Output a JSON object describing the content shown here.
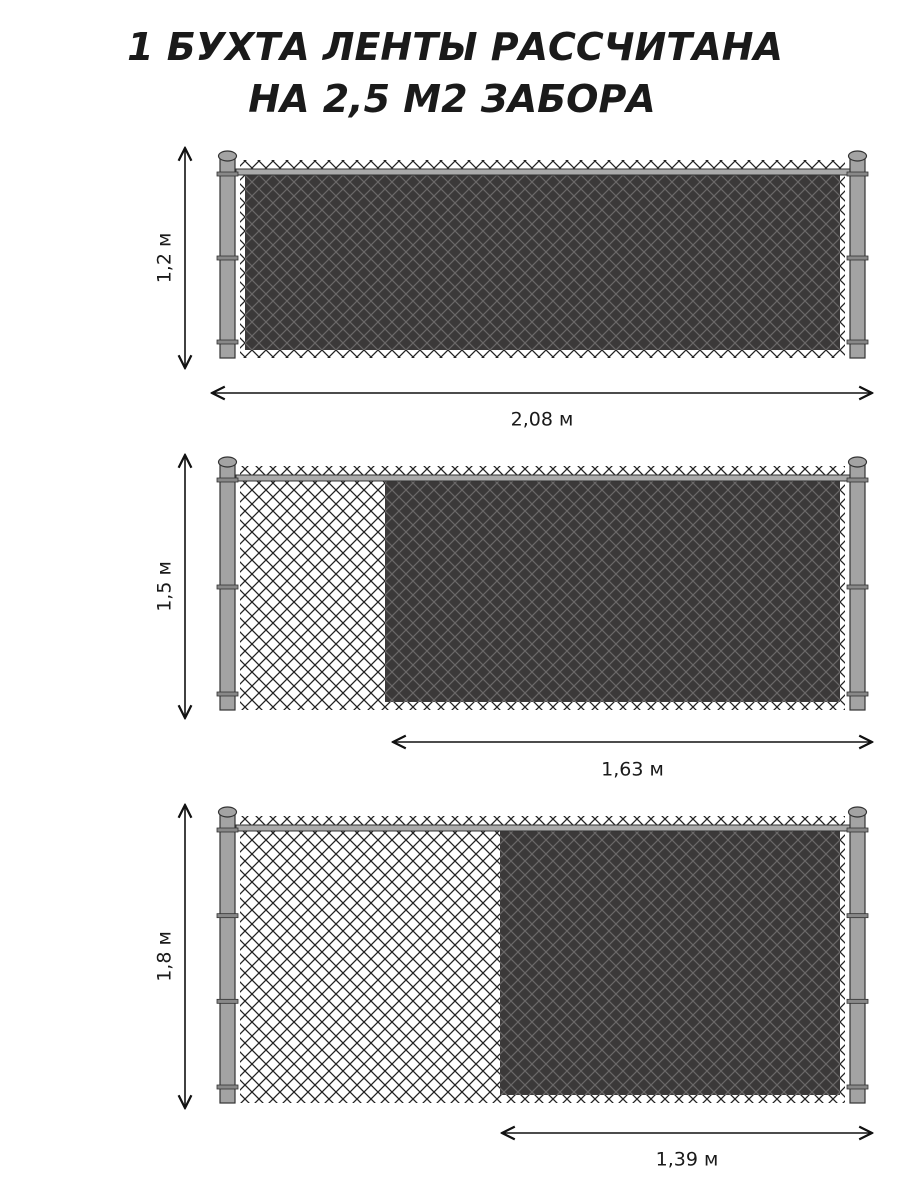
{
  "title": {
    "line1": "1 БУХТА ЛЕНТЫ РАССЧИТАНА",
    "line2": "НА 2,5 М2 ЗАБОРА"
  },
  "panels": [
    {
      "height_label": "1,2 м",
      "width_label": "2,08 м"
    },
    {
      "height_label": "1,5 м",
      "width_label": "1,63 м"
    },
    {
      "height_label": "1,8 м",
      "width_label": "1,39 м"
    }
  ]
}
